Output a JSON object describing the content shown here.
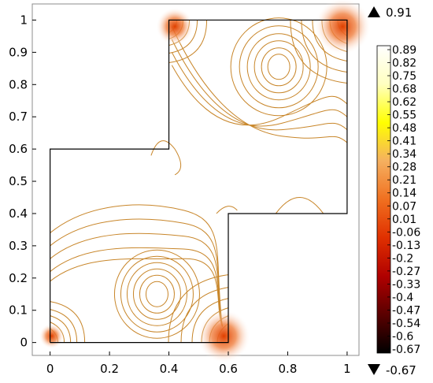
{
  "chart_data": {
    "type": "contour",
    "title": "",
    "xlabel": "",
    "ylabel": "",
    "xlim": [
      -0.06,
      1.04
    ],
    "ylim": [
      -0.04,
      1.05
    ],
    "x_ticks": [
      "0",
      "0.2",
      "0.4",
      "0.6",
      "0.8",
      "1"
    ],
    "x_tick_values": [
      0,
      0.2,
      0.4,
      0.6,
      0.8,
      1
    ],
    "y_ticks": [
      "0",
      "0.1",
      "0.2",
      "0.3",
      "0.4",
      "0.5",
      "0.6",
      "0.7",
      "0.8",
      "0.9",
      "1"
    ],
    "y_tick_values": [
      0,
      0.1,
      0.2,
      0.3,
      0.4,
      0.5,
      0.6,
      0.7,
      0.8,
      0.9,
      1
    ],
    "domain_outline": [
      [
        0,
        0
      ],
      [
        0.6,
        0
      ],
      [
        0.6,
        0.4
      ],
      [
        1,
        0.4
      ],
      [
        1,
        1
      ],
      [
        0.4,
        1
      ],
      [
        0.4,
        0.6
      ],
      [
        0,
        0.6
      ],
      [
        0,
        0
      ]
    ],
    "max_value": "0.91",
    "min_value": "-0.67",
    "colorbar_labels": [
      "0.89",
      "0.82",
      "0.75",
      "0.68",
      "0.62",
      "0.55",
      "0.48",
      "0.41",
      "0.34",
      "0.28",
      "0.21",
      "0.14",
      "0.07",
      "0.01",
      "-0.06",
      "-0.13",
      "-0.2",
      "-0.27",
      "-0.33",
      "-0.4",
      "-0.47",
      "-0.54",
      "-0.6",
      "-0.67"
    ],
    "colormap_stops": [
      "#000000",
      "#5a0000",
      "#b00000",
      "#e03000",
      "#f07020",
      "#f5b060",
      "#ffff00",
      "#ffffc0",
      "#ffffff"
    ],
    "contour_color": "#c8862a",
    "grid": false
  }
}
